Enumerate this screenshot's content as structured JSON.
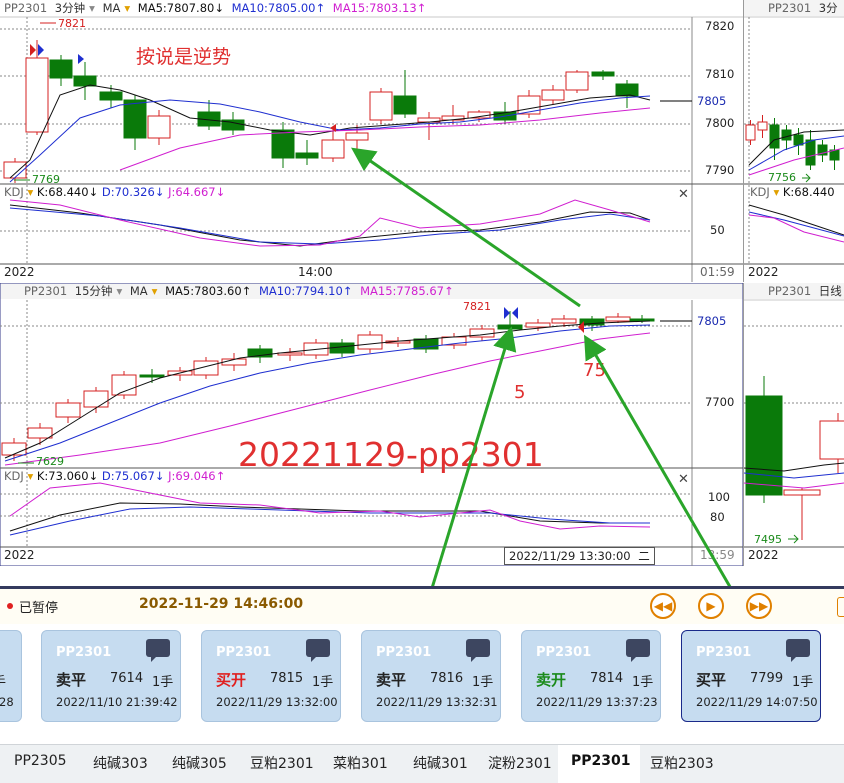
{
  "top_left": {
    "symbol": "PP2301",
    "period": "3分钟",
    "ma": "MA",
    "ma5": "MA5:7807.80↓",
    "ma10": "MA10:7805.00↑",
    "ma15": "MA15:7803.13↑",
    "kdj": "KDJ",
    "k": "K:68.440↓",
    "d": "D:70.326↓",
    "j": "J:64.667↓",
    "price_ticks": [
      "7820",
      "7810",
      "7805",
      "7800",
      "7790"
    ],
    "kdj_tick": "50",
    "date": "2022",
    "time": "14:00",
    "clock": "01:59",
    "high_label": "7821",
    "low_label": "7769",
    "annotation": "按说是逆势"
  },
  "top_right": {
    "symbol": "PP2301",
    "period": "3分",
    "kdj": "KDJ",
    "k": "K:68.440",
    "low_label": "7756",
    "date": "2022"
  },
  "mid_left": {
    "symbol": "PP2301",
    "period": "15分钟",
    "ma": "MA",
    "ma5": "MA5:7803.60↑",
    "ma10": "MA10:7794.10↑",
    "ma15": "MA15:7785.67↑",
    "kdj": "KDJ",
    "k": "K:73.060↓",
    "d": "D:75.067↓",
    "j": "J:69.046↑",
    "price_ticks": [
      "7805",
      "7700"
    ],
    "kdj_ticks": [
      "100",
      "80"
    ],
    "date": "2022",
    "clock": "13:59",
    "high_label": "7821",
    "low_label": "7629",
    "watermark": "20221129-pp2301",
    "cursor_time": "2022/11/29 13:30:00",
    "cursor_suffix": "二",
    "marker_5": "5",
    "marker_75": "75"
  },
  "mid_right": {
    "symbol": "PP2301",
    "period": "日线",
    "low_label": "7495",
    "date": "2022"
  },
  "controls": {
    "status": "已暂停",
    "time": "2022-11-29 14:46:00",
    "prev_icon": "rewind-icon",
    "play_icon": "play-icon",
    "next_icon": "fast-forward-icon"
  },
  "trades": [
    {
      "symbol": "",
      "action": "",
      "price": "",
      "qty": "手",
      "datetime": "28",
      "color": "#111111"
    },
    {
      "symbol": "PP2301",
      "action": "卖平",
      "price": "7614",
      "qty": "1手",
      "datetime": "2022/11/10 21:39:42",
      "color": "#111111"
    },
    {
      "symbol": "PP2301",
      "action": "买开",
      "price": "7815",
      "qty": "1手",
      "datetime": "2022/11/29 13:32:00",
      "color": "#e02020"
    },
    {
      "symbol": "PP2301",
      "action": "卖平",
      "price": "7816",
      "qty": "1手",
      "datetime": "2022/11/29 13:32:31",
      "color": "#111111"
    },
    {
      "symbol": "PP2301",
      "action": "卖开",
      "price": "7814",
      "qty": "1手",
      "datetime": "2022/11/29 13:37:23",
      "color": "#1a8a1a"
    },
    {
      "symbol": "PP2301",
      "action": "买平",
      "price": "7799",
      "qty": "1手",
      "datetime": "2022/11/29 14:07:50",
      "color": "#111111"
    }
  ],
  "tabs": [
    "PP2305",
    "纯碱303",
    "纯碱305",
    "豆粕2301",
    "菜粕301",
    "纯碱301",
    "淀粉2301",
    "PP2301",
    "豆粕2303"
  ],
  "active_tab": "PP2301",
  "colors": {
    "up": "#d42020",
    "down": "#0a7a0a",
    "ma5": "#111111",
    "ma10": "#1f2fd0",
    "ma15": "#d01fd0",
    "arrow": "#2aa52a"
  }
}
